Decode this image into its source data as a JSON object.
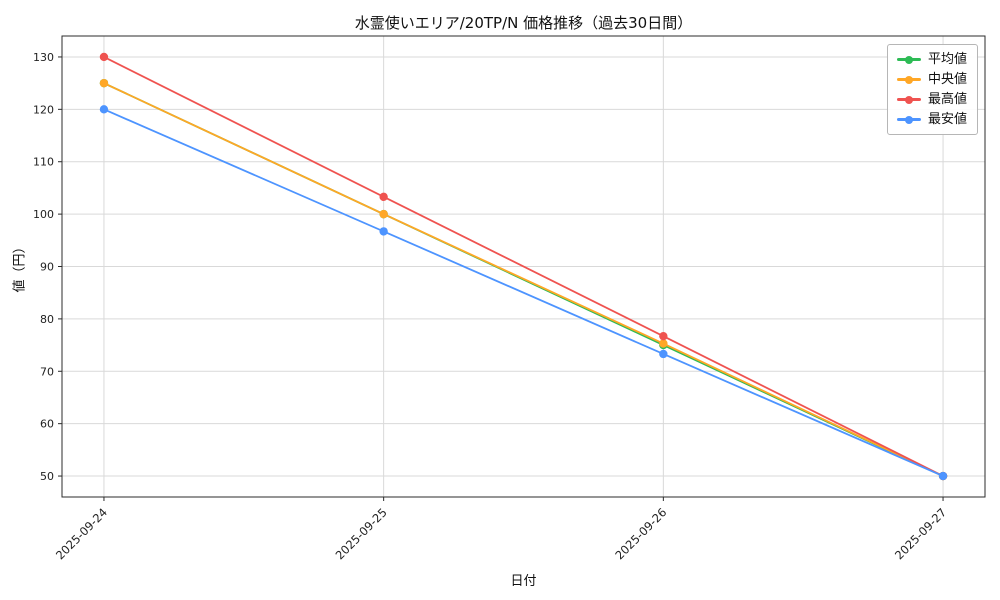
{
  "chart_data": {
    "type": "line",
    "title": "水霊使いエリア/20TP/N 価格推移（過去30日間）",
    "xlabel": "日付",
    "ylabel": "値（円）",
    "x": [
      "2025-09-24",
      "2025-09-25",
      "2025-09-26",
      "2025-09-27"
    ],
    "yticks": [
      50,
      60,
      70,
      80,
      90,
      100,
      110,
      120,
      130
    ],
    "ylim": [
      46,
      134
    ],
    "grid": true,
    "legend_position": "upper right",
    "series": [
      {
        "name": "平均値",
        "color": "#2dbb55",
        "values": [
          125,
          100,
          75,
          50
        ]
      },
      {
        "name": "中央値",
        "color": "#ffa726",
        "values": [
          125,
          100,
          75.3,
          50
        ]
      },
      {
        "name": "最高値",
        "color": "#ef5350",
        "values": [
          130,
          103.3,
          76.7,
          50
        ]
      },
      {
        "name": "最安値",
        "color": "#4d94ff",
        "values": [
          120,
          96.7,
          73.3,
          50
        ]
      }
    ],
    "colors": {
      "grid": "#d9d9d9",
      "axis": "#2b2b2b",
      "tick_text": "#222222"
    }
  }
}
